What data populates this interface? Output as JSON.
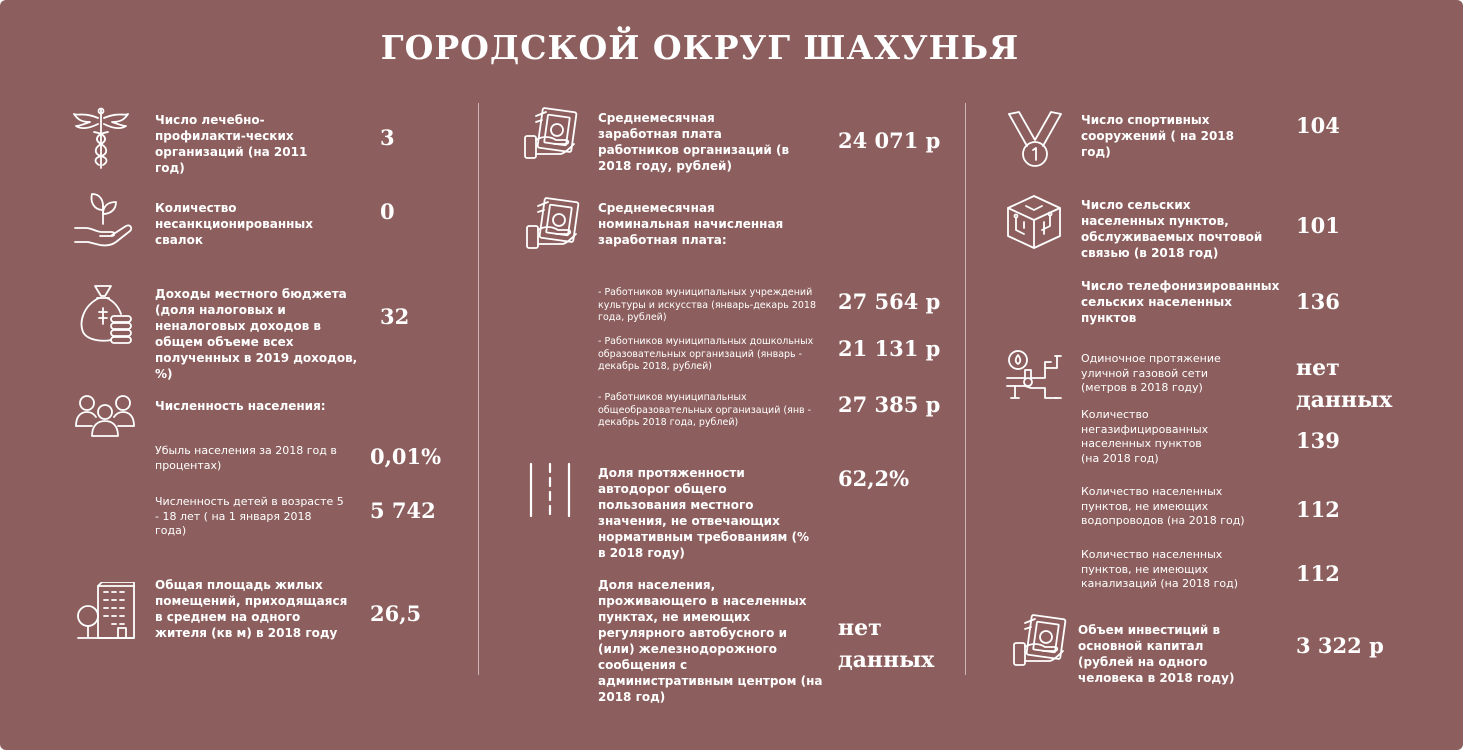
{
  "title": "ГОРОДСКОЙ ОКРУГ ШАХУНЬЯ",
  "icon_color": "#ffffff",
  "background_color": "#8c5f5e",
  "col1": {
    "medical": {
      "icon": "caduceus-icon",
      "label": "Число лечебно-профилакти-ческих организаций (на 2011 год)",
      "value": "3"
    },
    "dumps": {
      "icon": "plant-in-hand-icon",
      "label": "Количество несанкционированных свалок",
      "value": "0"
    },
    "budget": {
      "icon": "money-bag-coins-icon",
      "label": "Доходы местного бюджета (доля налоговых и неналоговых доходов в общем объеме всех полученных в 2019 доходов, %)",
      "value": "32"
    },
    "population": {
      "icon": "people-group-icon",
      "label": "Численность населения:"
    },
    "decline": {
      "label": "Убыль населения за 2018 год в процентах)",
      "value": "0,01%"
    },
    "children": {
      "label": "Численность детей в возрасте 5 - 18 лет ( на 1 января 2018 года)",
      "value": "5 742"
    },
    "housing": {
      "icon": "building-tree-icon",
      "label": "Общая площадь жилых помещений, приходящаяся в среднем на одного жителя (кв м) в 2018 году",
      "value": "26,5"
    }
  },
  "col2": {
    "avg_salary": {
      "icon": "money-hand-icon",
      "label": "Среднемесячная заработная плата работников организаций (в 2018 году, рублей)",
      "value": "24 071 р"
    },
    "nominal_salary": {
      "icon": "money-hand-icon",
      "label": "Среднемесячная номинальная начисленная заработная плата:"
    },
    "culture": {
      "label": "- Работников муниципальных учреждений культуры и искусства (январь-декарь 2018 года, рублей)",
      "value": "27 564 р"
    },
    "preschool": {
      "label": "- Работников муниципальных дошкольных образовательных организаций (январь - декабрь 2018, рублей)",
      "value": "21 131 р"
    },
    "general_edu": {
      "label": "- Работников муниципальных общеобразовательных организаций (янв - декабрь 2018 года, рублей)",
      "value": "27 385 р"
    },
    "roads": {
      "icon": "road-icon",
      "label": "Доля протяженности автодорог общего пользования местного значения, не отвечающих нормативным требованиям (% в 2018 году)",
      "value": "62,2%"
    },
    "transport": {
      "label": "Доля населения, проживающего в населенных пунктах, не имеющих регулярного автобусного и (или) железнодорожного сообщения с административным центром (на 2018 год)",
      "value": "нет данных"
    }
  },
  "col3": {
    "sports": {
      "icon": "medal-icon",
      "label": "Число спортивных сооружений ( на 2018 год)",
      "value": "104"
    },
    "postal": {
      "icon": "circuit-box-icon",
      "label": "Число сельских населенных пунктов, обслуживаемых почтовой связью (в 2018 год)",
      "value": "101"
    },
    "phone": {
      "label": "Число телефонизированных сельских населенных пунктов",
      "value": "136"
    },
    "gas_network": {
      "icon": "gas-pipe-icon",
      "label": "Одиночное протяжение уличной газовой сети (метров в 2018 году)",
      "value": "нет данных"
    },
    "no_gas": {
      "label": "Количество негазифицированных населенных пунктов (на 2018 год)",
      "value": "139"
    },
    "no_water": {
      "label": "Количество населенных пунктов, не имеющих водопроводов  (на 2018 год)",
      "value": "112"
    },
    "no_sewer": {
      "label": "Количество населенных пунктов, не имеющих канализаций (на 2018 год)",
      "value": "112"
    },
    "investment": {
      "icon": "money-hand-icon",
      "label": "Объем инвестиций в основной капитал (рублей на одного человека в 2018 году)",
      "value": "3 322  р"
    }
  }
}
